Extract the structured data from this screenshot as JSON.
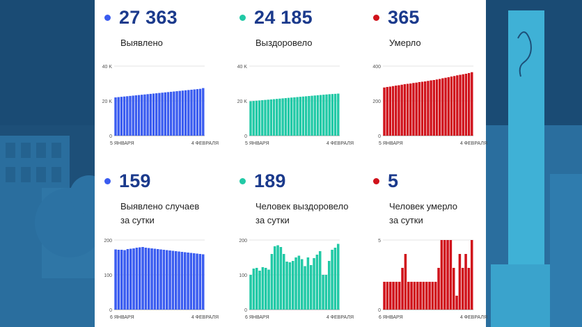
{
  "colors": {
    "blue": "#3a5cf0",
    "teal": "#21c9a6",
    "red": "#d0121b",
    "number": "#1b3a8c",
    "background": "#1d4f78"
  },
  "panels": [
    {
      "value": "27 363",
      "label1": "Выявлено",
      "label2": "",
      "color": "#3a5cf0"
    },
    {
      "value": "24 185",
      "label1": "Выздоровело",
      "label2": "",
      "color": "#21c9a6"
    },
    {
      "value": "365",
      "label1": "Умерло",
      "label2": "",
      "color": "#d0121b"
    },
    {
      "value": "159",
      "label1": "Выявлено случаев",
      "label2": "за сутки",
      "color": "#3a5cf0"
    },
    {
      "value": "189",
      "label1": "Человек выздоровело",
      "label2": "за сутки",
      "color": "#21c9a6"
    },
    {
      "value": "5",
      "label1": "Человек умерло",
      "label2": "за сутки",
      "color": "#d0121b"
    }
  ],
  "chart_data": [
    {
      "type": "bar",
      "title": "Выявлено",
      "ylim": [
        0,
        40000
      ],
      "yticks": [
        0,
        20000,
        40000
      ],
      "ytick_labels": [
        "0",
        "20 K",
        "40 K"
      ],
      "x_start": "5 ЯНВАРЯ",
      "x_end": "4 ФЕВРАЛЯ",
      "color": "#3a5cf0",
      "values": [
        22000,
        22170,
        22340,
        22510,
        22680,
        22850,
        23020,
        23190,
        23360,
        23530,
        23700,
        23870,
        24040,
        24210,
        24380,
        24550,
        24720,
        24890,
        25060,
        25230,
        25400,
        25570,
        25740,
        25910,
        26080,
        26250,
        26420,
        26590,
        26760,
        26930,
        27363
      ]
    },
    {
      "type": "bar",
      "title": "Выздоровело",
      "ylim": [
        0,
        40000
      ],
      "yticks": [
        0,
        20000,
        40000
      ],
      "ytick_labels": [
        "0",
        "20 K",
        "40 K"
      ],
      "x_start": "5 ЯНВАРЯ",
      "x_end": "4 ФЕВРАЛЯ",
      "color": "#21c9a6",
      "values": [
        19800,
        19950,
        20100,
        20250,
        20400,
        20550,
        20700,
        20850,
        21000,
        21150,
        21300,
        21450,
        21600,
        21750,
        21900,
        22050,
        22200,
        22350,
        22500,
        22650,
        22800,
        22950,
        23100,
        23250,
        23400,
        23550,
        23700,
        23850,
        23950,
        24050,
        24185
      ]
    },
    {
      "type": "bar",
      "title": "Умерло",
      "ylim": [
        0,
        400
      ],
      "yticks": [
        0,
        200,
        400
      ],
      "ytick_labels": [
        "0",
        "200",
        "400"
      ],
      "x_start": "5 ЯНВАРЯ",
      "x_end": "4 ФЕВРАЛЯ",
      "color": "#d0121b",
      "values": [
        277,
        280,
        282,
        285,
        288,
        290,
        293,
        296,
        298,
        300,
        303,
        305,
        308,
        310,
        312,
        315,
        318,
        320,
        323,
        326,
        330,
        333,
        336,
        340,
        343,
        347,
        350,
        353,
        356,
        360,
        365
      ]
    },
    {
      "type": "bar",
      "title": "Выявлено случаев за сутки",
      "ylim": [
        0,
        200
      ],
      "yticks": [
        0,
        100,
        200
      ],
      "ytick_labels": [
        "0",
        "100",
        "200"
      ],
      "x_start": "6 ЯНВАРЯ",
      "x_end": "4 ФЕВРАЛЯ",
      "color": "#3a5cf0",
      "values": [
        173,
        172,
        172,
        171,
        174,
        175,
        176,
        178,
        179,
        180,
        178,
        177,
        176,
        175,
        174,
        173,
        172,
        171,
        170,
        169,
        168,
        167,
        166,
        165,
        164,
        163,
        162,
        161,
        160,
        159
      ]
    },
    {
      "type": "bar",
      "title": "Человек выздоровело за сутки",
      "ylim": [
        0,
        200
      ],
      "yticks": [
        0,
        100,
        200
      ],
      "ytick_labels": [
        "0",
        "100",
        "200"
      ],
      "x_start": "6 ЯНВАРЯ",
      "x_end": "4 ФЕВРАЛЯ",
      "color": "#21c9a6",
      "values": [
        100,
        118,
        120,
        112,
        122,
        120,
        115,
        160,
        182,
        185,
        180,
        160,
        138,
        136,
        140,
        150,
        155,
        145,
        125,
        150,
        128,
        148,
        158,
        168,
        100,
        100,
        140,
        172,
        178,
        189
      ]
    },
    {
      "type": "bar",
      "title": "Человек умерло за сутки",
      "ylim": [
        0,
        5
      ],
      "yticks": [
        0,
        5
      ],
      "ytick_labels": [
        "0",
        "5"
      ],
      "x_start": "6 ЯНВАРЯ",
      "x_end": "4 ФЕВРАЛЯ",
      "color": "#d0121b",
      "values": [
        2,
        2,
        2,
        2,
        2,
        2,
        3,
        4,
        2,
        2,
        2,
        2,
        2,
        2,
        2,
        2,
        2,
        2,
        3,
        5,
        5,
        5,
        5,
        3,
        1,
        4,
        3,
        4,
        3,
        5
      ]
    }
  ]
}
